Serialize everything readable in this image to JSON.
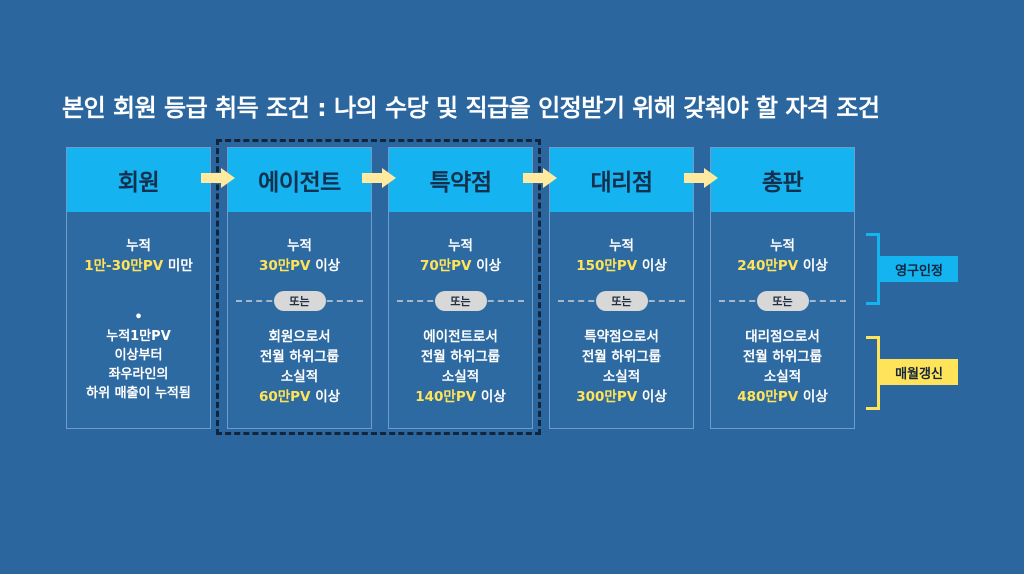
{
  "title": "본인 회원 등급 취득 조건 : 나의 수당 및 직급을 인정받기 위해 갖춰야 할 자격 조건",
  "or_label": "또는",
  "grades": [
    {
      "name": "회원",
      "req_line1": "누적",
      "req_line2_highlight": "1만-30만PV",
      "req_line2_suffix": " 미만",
      "bullet": "•",
      "note_lines": [
        "누적1만PV",
        "이상부터",
        "좌우라인의",
        "하위 매출이 누적됨"
      ]
    },
    {
      "name": "에이전트",
      "req_line1": "누적",
      "req_line2_highlight": "30만PV",
      "req_line2_suffix": " 이상",
      "alt_lines": [
        "회원으로서",
        "전월 하위그룹",
        "소실적"
      ],
      "alt_highlight": "60만PV",
      "alt_suffix": " 이상"
    },
    {
      "name": "특약점",
      "req_line1": "누적",
      "req_line2_highlight": "70만PV",
      "req_line2_suffix": " 이상",
      "alt_lines": [
        "에이전트로서",
        "전월 하위그룹",
        "소실적"
      ],
      "alt_highlight": "140만PV",
      "alt_suffix": " 이상"
    },
    {
      "name": "대리점",
      "req_line1": "누적",
      "req_line2_highlight": "150만PV",
      "req_line2_suffix": " 이상",
      "alt_lines": [
        "특약점으로서",
        "전월 하위그룹",
        "소실적"
      ],
      "alt_highlight": "300만PV",
      "alt_suffix": " 이상"
    },
    {
      "name": "총판",
      "req_line1": "누적",
      "req_line2_highlight": "240만PV",
      "req_line2_suffix": " 이상",
      "alt_lines": [
        "대리점으로서",
        "전월 하위그룹",
        "소실적"
      ],
      "alt_highlight": "480만PV",
      "alt_suffix": " 이상"
    }
  ],
  "labels": {
    "permanent": "영구인정",
    "monthly": "매월갱신"
  },
  "colors": {
    "background": "#2b669e",
    "header": "#15b3ef",
    "highlight": "#ffe45a",
    "arrow": "#ffeaa0",
    "permanent_tag": "#14b4f0",
    "monthly_tag": "#ffe45a",
    "group_border": "#11253d"
  }
}
